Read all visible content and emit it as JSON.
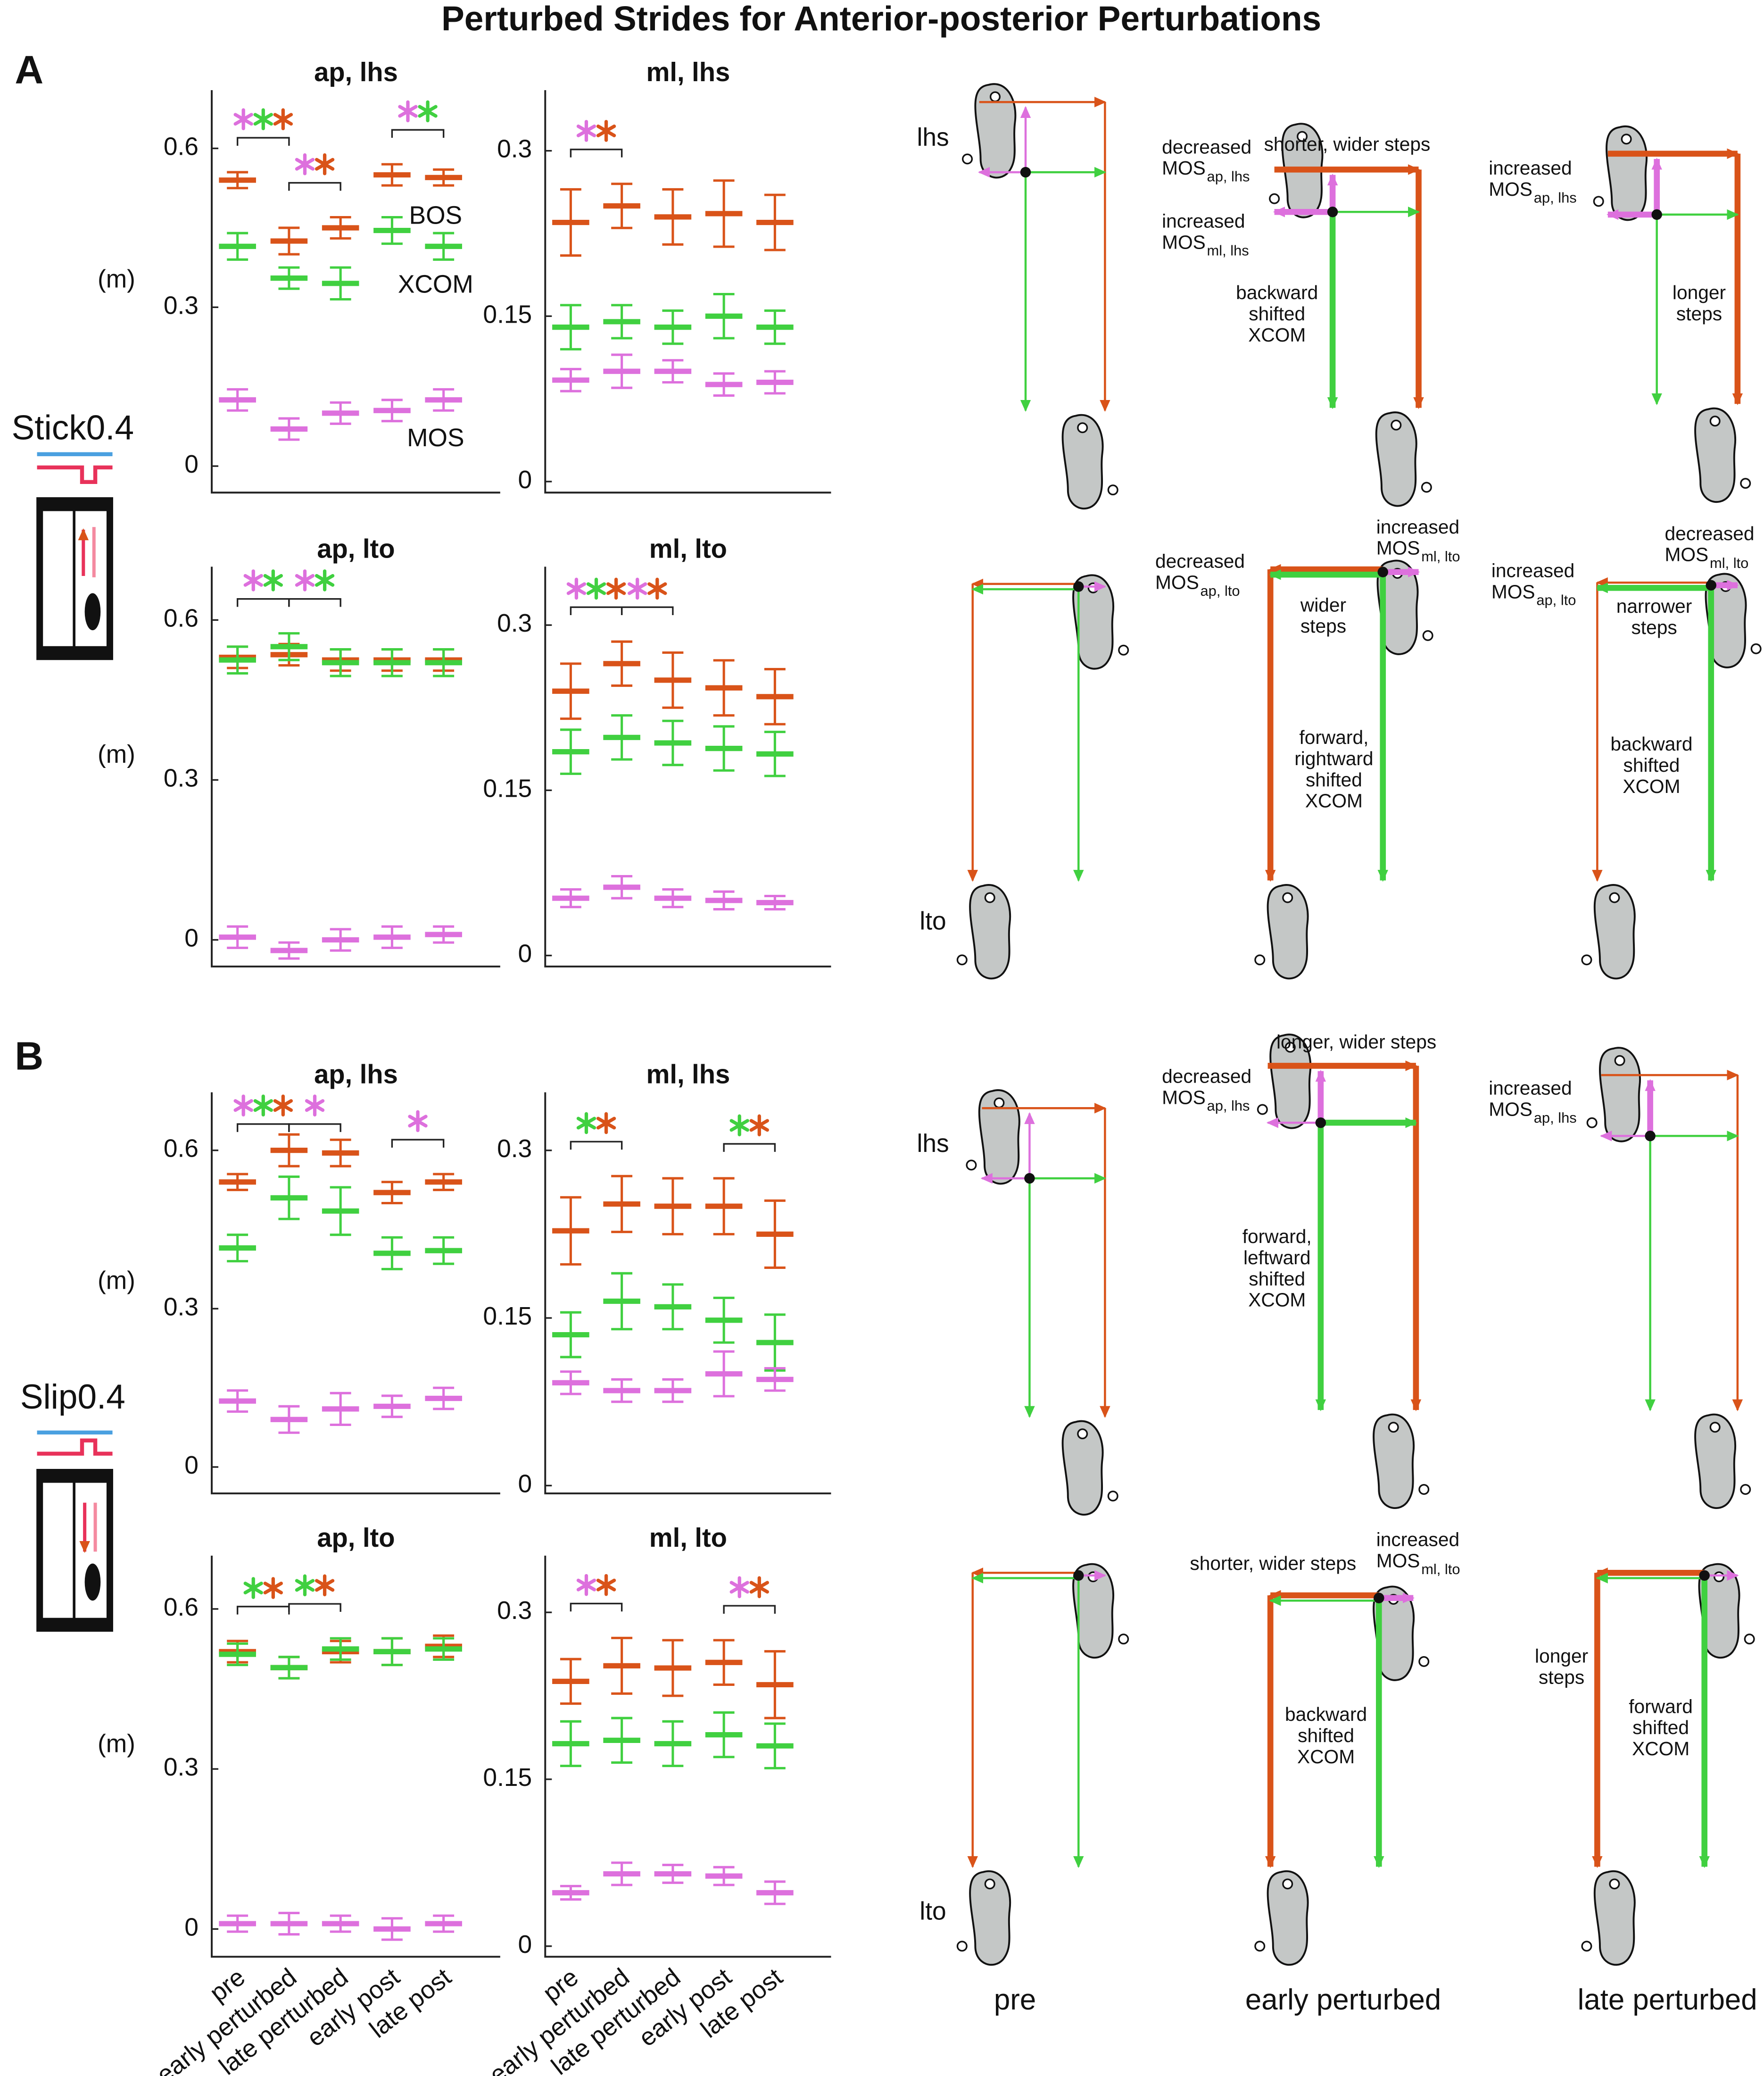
{
  "title": "Perturbed Strides for Anterior-posterior Perturbations",
  "panel_labels": [
    "A",
    "B"
  ],
  "conditions": [
    "Stick0.4",
    "Slip0.4"
  ],
  "chart_data": [
    {
      "type": "errorbar",
      "title": "ap, lhs",
      "ylabel": "(m)",
      "categories": [
        null,
        null,
        null,
        null,
        null
      ],
      "ylim": [
        -0.05,
        0.71
      ],
      "yticks": [
        0,
        0.3,
        0.6
      ],
      "series": [
        {
          "name": "BOS",
          "color": "#d95319",
          "values": [
            0.54,
            0.425,
            0.45,
            0.55,
            0.545
          ],
          "errors": [
            0.015,
            0.025,
            0.02,
            0.02,
            0.015
          ]
        },
        {
          "name": "XCOM",
          "color": "#40d040",
          "values": [
            0.415,
            0.355,
            0.345,
            0.445,
            0.415
          ],
          "errors": [
            0.025,
            0.02,
            0.03,
            0.025,
            0.025
          ]
        },
        {
          "name": "MOS",
          "color": "#dd70dd",
          "values": [
            0.125,
            0.07,
            0.1,
            0.105,
            0.125
          ],
          "errors": [
            0.02,
            0.02,
            0.02,
            0.02,
            0.02
          ]
        }
      ],
      "significance": [
        {
          "from": 0,
          "to": 1,
          "colors": [
            "#dd70dd",
            "#40d040",
            "#d95319"
          ]
        },
        {
          "from": 1,
          "to": 2,
          "colors": [
            "#dd70dd",
            "#d95319"
          ]
        },
        {
          "from": 3,
          "to": 4,
          "colors": [
            "#dd70dd",
            "#40d040"
          ]
        }
      ]
    },
    {
      "type": "errorbar",
      "title": "ml, lhs",
      "categories": [
        null,
        null,
        null,
        null,
        null
      ],
      "ylim": [
        -0.01,
        0.355
      ],
      "yticks": [
        0,
        0.15,
        0.3
      ],
      "series": [
        {
          "color": "#d95319",
          "values": [
            0.235,
            0.25,
            0.24,
            0.243,
            0.235
          ],
          "errors": [
            0.03,
            0.02,
            0.025,
            0.03,
            0.025
          ]
        },
        {
          "color": "#40d040",
          "values": [
            0.14,
            0.145,
            0.14,
            0.15,
            0.14
          ],
          "errors": [
            0.02,
            0.015,
            0.015,
            0.02,
            0.015
          ]
        },
        {
          "color": "#dd70dd",
          "values": [
            0.092,
            0.1,
            0.1,
            0.088,
            0.09
          ],
          "errors": [
            0.01,
            0.015,
            0.01,
            0.01,
            0.01
          ]
        }
      ],
      "significance": [
        {
          "from": 0,
          "to": 1,
          "colors": [
            "#dd70dd",
            "#d95319"
          ]
        }
      ]
    },
    {
      "type": "errorbar",
      "title": "ap, lto",
      "ylabel": "(m)",
      "categories": [
        null,
        null,
        null,
        null,
        null
      ],
      "ylim": [
        -0.05,
        0.7
      ],
      "yticks": [
        0,
        0.3,
        0.6
      ],
      "series": [
        {
          "color": "#d95319",
          "values": [
            0.53,
            0.535,
            0.525,
            0.525,
            0.525
          ],
          "errors": [
            0.02,
            0.02,
            0.02,
            0.02,
            0.02
          ]
        },
        {
          "color": "#40d040",
          "values": [
            0.525,
            0.55,
            0.52,
            0.52,
            0.52
          ],
          "errors": [
            0.025,
            0.025,
            0.025,
            0.025,
            0.025
          ]
        },
        {
          "color": "#dd70dd",
          "values": [
            0.005,
            -0.02,
            0,
            0.005,
            0.01
          ],
          "errors": [
            0.02,
            0.015,
            0.02,
            0.02,
            0.015
          ]
        }
      ],
      "significance": [
        {
          "from": 0,
          "to": 1,
          "colors": [
            "#dd70dd",
            "#40d040"
          ]
        },
        {
          "from": 1,
          "to": 2,
          "colors": [
            "#dd70dd",
            "#40d040"
          ]
        }
      ]
    },
    {
      "type": "errorbar",
      "title": "ml, lto",
      "categories": [
        null,
        null,
        null,
        null,
        null
      ],
      "ylim": [
        -0.01,
        0.353
      ],
      "yticks": [
        0,
        0.15,
        0.3
      ],
      "series": [
        {
          "color": "#d95319",
          "values": [
            0.24,
            0.265,
            0.25,
            0.243,
            0.235
          ],
          "errors": [
            0.025,
            0.02,
            0.025,
            0.025,
            0.025
          ]
        },
        {
          "color": "#40d040",
          "values": [
            0.185,
            0.198,
            0.193,
            0.188,
            0.183
          ],
          "errors": [
            0.02,
            0.02,
            0.02,
            0.02,
            0.02
          ]
        },
        {
          "color": "#dd70dd",
          "values": [
            0.052,
            0.062,
            0.052,
            0.05,
            0.048
          ],
          "errors": [
            0.008,
            0.01,
            0.008,
            0.008,
            0.006
          ]
        }
      ],
      "significance": [
        {
          "from": 0,
          "to": 1,
          "colors": [
            "#dd70dd",
            "#40d040",
            "#d95319"
          ]
        },
        {
          "from": 1,
          "to": 2,
          "colors": [
            "#dd70dd",
            "#d95319"
          ]
        }
      ]
    },
    {
      "type": "errorbar",
      "title": "ap, lhs",
      "ylabel": "(m)",
      "categories": [
        null,
        null,
        null,
        null,
        null
      ],
      "ylim": [
        -0.05,
        0.71
      ],
      "yticks": [
        0,
        0.3,
        0.6
      ],
      "series": [
        {
          "color": "#d95319",
          "values": [
            0.54,
            0.6,
            0.595,
            0.52,
            0.54
          ],
          "errors": [
            0.015,
            0.03,
            0.025,
            0.02,
            0.015
          ]
        },
        {
          "color": "#40d040",
          "values": [
            0.415,
            0.51,
            0.485,
            0.405,
            0.41
          ],
          "errors": [
            0.025,
            0.04,
            0.045,
            0.03,
            0.025
          ]
        },
        {
          "color": "#dd70dd",
          "values": [
            0.125,
            0.09,
            0.11,
            0.115,
            0.13
          ],
          "errors": [
            0.02,
            0.025,
            0.03,
            0.02,
            0.02
          ]
        }
      ],
      "significance": [
        {
          "from": 0,
          "to": 1,
          "colors": [
            "#dd70dd",
            "#40d040",
            "#d95319"
          ]
        },
        {
          "from": 1,
          "to": 2,
          "colors": [
            "#dd70dd"
          ]
        },
        {
          "from": 3,
          "to": 4,
          "colors": [
            "#dd70dd"
          ]
        }
      ]
    },
    {
      "type": "errorbar",
      "title": "ml, lhs",
      "categories": [
        null,
        null,
        null,
        null,
        null
      ],
      "ylim": [
        -0.007,
        0.352
      ],
      "yticks": [
        0,
        0.15,
        0.3
      ],
      "series": [
        {
          "color": "#d95319",
          "values": [
            0.228,
            0.252,
            0.25,
            0.25,
            0.225
          ],
          "errors": [
            0.03,
            0.025,
            0.025,
            0.025,
            0.03
          ]
        },
        {
          "color": "#40d040",
          "values": [
            0.135,
            0.165,
            0.16,
            0.148,
            0.128
          ],
          "errors": [
            0.02,
            0.025,
            0.02,
            0.02,
            0.025
          ]
        },
        {
          "color": "#dd70dd",
          "values": [
            0.092,
            0.085,
            0.085,
            0.1,
            0.095
          ],
          "errors": [
            0.01,
            0.01,
            0.01,
            0.02,
            0.01
          ]
        }
      ],
      "significance": [
        {
          "from": 0,
          "to": 1,
          "colors": [
            "#40d040",
            "#d95319"
          ]
        },
        {
          "from": 3,
          "to": 4,
          "colors": [
            "#40d040",
            "#d95319"
          ]
        }
      ]
    },
    {
      "type": "errorbar",
      "title": "ap, lto",
      "ylabel": "(m)",
      "categories": [
        "pre",
        "early perturbed",
        "late perturbed",
        "early post",
        "late post"
      ],
      "ylim": [
        -0.052,
        0.7
      ],
      "yticks": [
        0,
        0.3,
        0.6
      ],
      "series": [
        {
          "color": "#d95319",
          "values": [
            0.52,
            0.49,
            0.52,
            0.52,
            0.53
          ],
          "errors": [
            0.02,
            0.02,
            0.02,
            0.025,
            0.02
          ]
        },
        {
          "color": "#40d040",
          "values": [
            0.515,
            0.49,
            0.525,
            0.52,
            0.525
          ],
          "errors": [
            0.02,
            0.02,
            0.02,
            0.025,
            0.02
          ]
        },
        {
          "color": "#dd70dd",
          "values": [
            0.01,
            0.01,
            0.01,
            0,
            0.01
          ],
          "errors": [
            0.015,
            0.02,
            0.015,
            0.02,
            0.015
          ]
        }
      ],
      "significance": [
        {
          "from": 0,
          "to": 1,
          "colors": [
            "#40d040",
            "#d95319"
          ]
        },
        {
          "from": 1,
          "to": 2,
          "colors": [
            "#40d040",
            "#d95319"
          ]
        }
      ]
    },
    {
      "type": "errorbar",
      "title": "ml, lto",
      "categories": [
        "pre",
        "early perturbed",
        "late perturbed",
        "early post",
        "late post"
      ],
      "ylim": [
        -0.0095,
        0.351
      ],
      "yticks": [
        0,
        0.15,
        0.3
      ],
      "series": [
        {
          "color": "#d95319",
          "values": [
            0.238,
            0.252,
            0.25,
            0.255,
            0.235
          ],
          "errors": [
            0.02,
            0.025,
            0.025,
            0.02,
            0.03
          ]
        },
        {
          "color": "#40d040",
          "values": [
            0.182,
            0.185,
            0.182,
            0.19,
            0.18
          ],
          "errors": [
            0.02,
            0.02,
            0.02,
            0.02,
            0.02
          ]
        },
        {
          "color": "#dd70dd",
          "values": [
            0.048,
            0.065,
            0.065,
            0.063,
            0.048
          ],
          "errors": [
            0.006,
            0.01,
            0.008,
            0.008,
            0.01
          ]
        }
      ],
      "significance": [
        {
          "from": 0,
          "to": 1,
          "colors": [
            "#dd70dd",
            "#d95319"
          ]
        },
        {
          "from": 3,
          "to": 4,
          "colors": [
            "#dd70dd",
            "#d95319"
          ]
        }
      ]
    }
  ],
  "diagrams": {
    "columns": [
      "pre",
      "early perturbed",
      "late perturbed"
    ],
    "events": [
      "lhs",
      "lto"
    ],
    "panels": [
      {
        "annotations": []
      },
      {
        "annotations": [
          {
            "lines": [
              "decreased",
              "MOS"
            ],
            "sub": "ap, lhs",
            "color": "#dd70dd"
          },
          {
            "lines": [
              "shorter,  wider steps"
            ],
            "color": "#d95319"
          },
          {
            "lines": [
              "increased",
              "MOS"
            ],
            "sub": "ml, lhs",
            "color": "#dd70dd"
          },
          {
            "lines": [
              "backward",
              "shifted",
              "XCOM"
            ],
            "color": "#40d040"
          }
        ]
      },
      {
        "annotations": [
          {
            "lines": [
              "increased",
              "MOS"
            ],
            "sub": "ap, lhs",
            "color": "#dd70dd"
          },
          {
            "lines": [
              "longer",
              "steps"
            ],
            "color": "#d95319"
          }
        ]
      },
      {
        "annotations": []
      },
      {
        "annotations": [
          {
            "lines": [
              "increased",
              "MOS"
            ],
            "sub": "ml, lto",
            "color": "#dd70dd"
          },
          {
            "lines": [
              "decreased",
              "MOS"
            ],
            "sub": "ap, lto",
            "color": "#dd70dd"
          },
          {
            "lines": [
              "wider",
              "steps"
            ],
            "color": "#d95319"
          },
          {
            "lines": [
              "forward,",
              "rightward",
              "shifted",
              "XCOM"
            ],
            "color": "#40d040"
          }
        ]
      },
      {
        "annotations": [
          {
            "lines": [
              "decreased",
              "MOS"
            ],
            "sub": "ml, lto",
            "color": "#dd70dd"
          },
          {
            "lines": [
              "increased",
              "MOS"
            ],
            "sub": "ap, lto",
            "color": "#dd70dd"
          },
          {
            "lines": [
              "narrower",
              "steps"
            ],
            "color": "#d95319"
          },
          {
            "lines": [
              "backward",
              "shifted",
              "XCOM"
            ],
            "color": "#40d040"
          }
        ]
      },
      {
        "annotations": []
      },
      {
        "annotations": [
          {
            "lines": [
              "longer, wider steps"
            ],
            "color": "#d95319"
          },
          {
            "lines": [
              "decreased",
              "MOS"
            ],
            "sub": "ap, lhs",
            "color": "#dd70dd"
          },
          {
            "lines": [
              "forward,",
              "leftward",
              "shifted",
              "XCOM"
            ],
            "color": "#40d040"
          }
        ]
      },
      {
        "annotations": [
          {
            "lines": [
              "increased",
              "MOS"
            ],
            "sub": "ap, lhs",
            "color": "#dd70dd"
          }
        ]
      },
      {
        "annotations": []
      },
      {
        "annotations": [
          {
            "lines": [
              "shorter,  wider steps"
            ],
            "color": "#d95319"
          },
          {
            "lines": [
              "increased",
              "MOS"
            ],
            "sub": "ml, lto",
            "color": "#dd70dd"
          },
          {
            "lines": [
              "backward",
              "shifted",
              "XCOM"
            ],
            "color": "#40d040"
          }
        ]
      },
      {
        "annotations": [
          {
            "lines": [
              "longer",
              "steps"
            ],
            "color": "#d95319"
          },
          {
            "lines": [
              "forward",
              "shifted",
              "XCOM"
            ],
            "color": "#40d040"
          }
        ]
      }
    ]
  }
}
